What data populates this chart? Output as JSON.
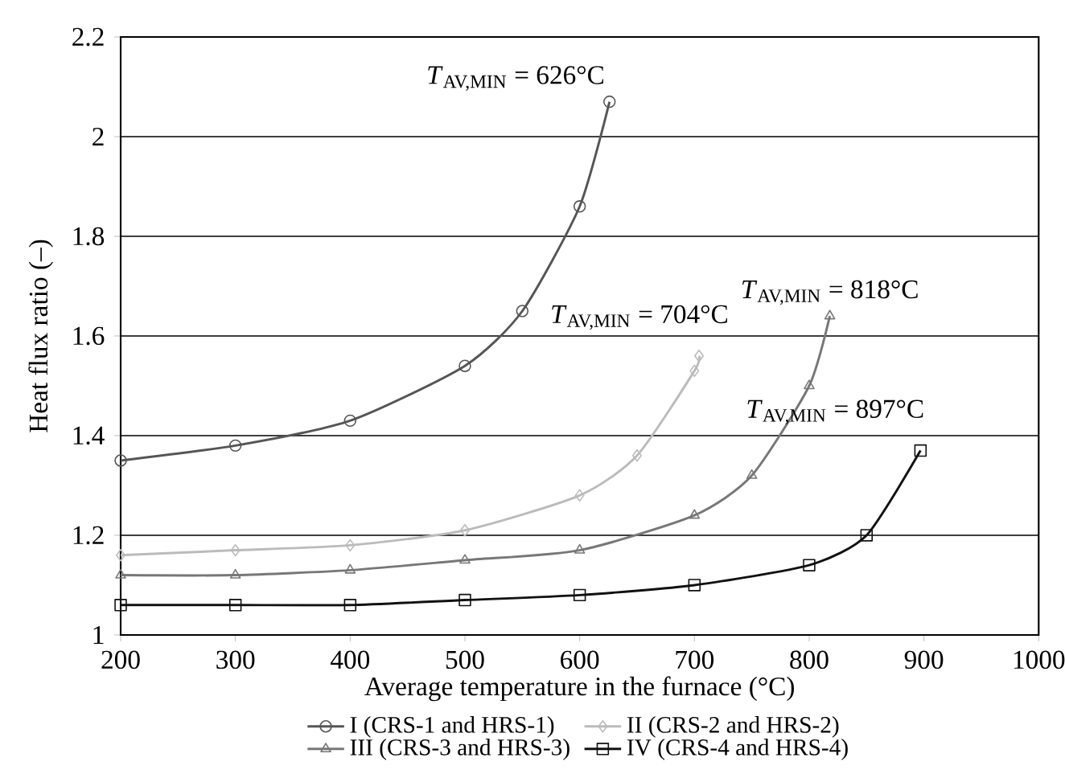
{
  "chart_data": {
    "type": "line",
    "xlabel": "Average temperature in the furnace (°C)",
    "ylabel": "Heat flux ratio (–)",
    "xlim": [
      200,
      1000
    ],
    "xticks": [
      200,
      300,
      400,
      500,
      600,
      700,
      800,
      900,
      1000
    ],
    "ylim": [
      1,
      2.2
    ],
    "yticks": [
      1,
      1.2,
      1.4,
      1.6,
      1.8,
      2,
      2.2
    ],
    "grid": "y",
    "legend": "bottom",
    "series": [
      {
        "name": "I (CRS-1 and HRS-1)",
        "color": "#555555",
        "marker": "circle",
        "x": [
          200,
          300,
          400,
          500,
          550,
          600,
          626
        ],
        "values": [
          1.35,
          1.38,
          1.43,
          1.54,
          1.65,
          1.86,
          2.07
        ]
      },
      {
        "name": "II (CRS-2 and HRS-2)",
        "color": "#bbbbbb",
        "marker": "diamond",
        "x": [
          200,
          300,
          400,
          500,
          600,
          650,
          700,
          704
        ],
        "values": [
          1.16,
          1.17,
          1.18,
          1.21,
          1.28,
          1.36,
          1.53,
          1.56
        ]
      },
      {
        "name": "III (CRS-3 and HRS-3)",
        "color": "#777777",
        "marker": "triangle",
        "x": [
          200,
          300,
          400,
          500,
          600,
          700,
          750,
          800,
          818
        ],
        "values": [
          1.12,
          1.12,
          1.13,
          1.15,
          1.17,
          1.24,
          1.32,
          1.5,
          1.64
        ]
      },
      {
        "name": "IV (CRS-4 and HRS-4)",
        "color": "#111111",
        "marker": "square",
        "x": [
          200,
          300,
          400,
          500,
          600,
          700,
          800,
          850,
          897
        ],
        "values": [
          1.06,
          1.06,
          1.06,
          1.07,
          1.08,
          1.1,
          1.14,
          1.2,
          1.37
        ]
      }
    ],
    "annotations": [
      {
        "text": "*T*$_{AV,MIN}$ = 626°C",
        "x": 626,
        "y": 2.07
      },
      {
        "text": "*T*$_{AV,MIN}$ = 704°C",
        "x": 704,
        "y": 1.56
      },
      {
        "text": "*T*$_{AV,MIN}$ = 818°C",
        "x": 818,
        "y": 1.64
      },
      {
        "text": "*T*$_{AV,MIN}$ = 897°C",
        "x": 897,
        "y": 1.37
      }
    ]
  }
}
